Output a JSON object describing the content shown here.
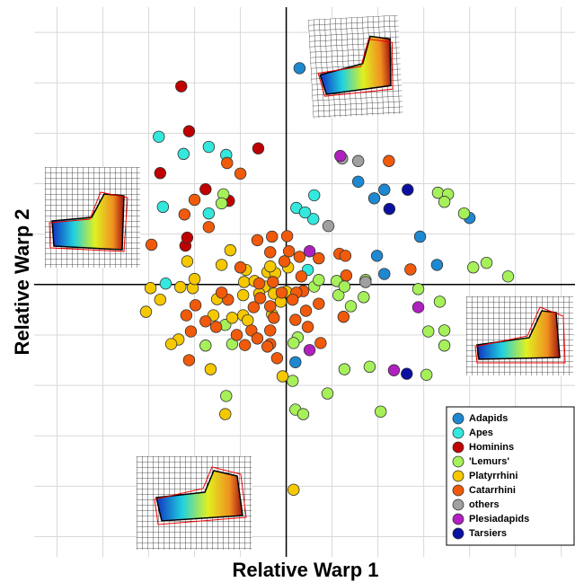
{
  "chart_data": {
    "type": "scatter",
    "x_label": "Relative Warp 1",
    "y_label": "Relative Warp 2",
    "xlim": [
      -5.5,
      6.3
    ],
    "ylim": [
      -5.4,
      5.5
    ],
    "xticks": [
      -5,
      -4,
      -3,
      -2,
      -1,
      0,
      1,
      2,
      3,
      4,
      5,
      6
    ],
    "yticks": [
      -5,
      -4,
      -3,
      -2,
      -1,
      0,
      1,
      2,
      3,
      4,
      5
    ],
    "grid": true,
    "legend": "lower right",
    "series": [
      {
        "name": "Adapids",
        "color": "#1e88d0",
        "x": [
          0.29,
          1.57,
          1.92,
          2.14,
          2.92,
          1.98,
          2.14,
          3.29,
          4.0,
          0.2
        ],
        "values": [
          4.29,
          2.04,
          1.71,
          1.88,
          0.95,
          0.57,
          0.21,
          0.39,
          1.32,
          -1.54
        ]
      },
      {
        "name": "Apes",
        "color": "#33e8dd",
        "x": [
          -2.78,
          -2.24,
          -1.69,
          -1.31,
          -2.69,
          -1.69,
          0.22,
          0.59,
          0.41,
          -2.63,
          0.47,
          0.61
        ],
        "values": [
          2.93,
          2.59,
          2.73,
          2.57,
          1.54,
          1.41,
          1.52,
          1.3,
          1.43,
          0.02,
          0.29,
          1.77
        ]
      },
      {
        "name": "Hominins",
        "color": "#c00000",
        "x": [
          -2.29,
          -2.12,
          -0.61,
          -2.75,
          -1.76,
          -1.25,
          -2.2,
          -2.16
        ],
        "values": [
          3.93,
          3.04,
          2.7,
          2.21,
          1.89,
          1.66,
          0.77,
          0.93
        ]
      },
      {
        "name": "'Lemurs'",
        "color": "#a6f05a",
        "x": [
          -1.37,
          -1.41,
          3.31,
          3.53,
          3.88,
          3.45,
          4.08,
          4.37,
          4.84,
          2.88,
          3.35,
          3.45,
          3.1,
          3.45,
          3.06,
          1.82,
          1.27,
          0.9,
          2.06,
          0.14,
          0.2,
          0.37,
          1.1,
          1.14,
          1.27,
          1.69,
          1.73,
          1.41,
          0.61,
          -1.33,
          -1.18,
          -1.76,
          -1.31,
          0.25,
          0.71,
          0.16
        ],
        "values": [
          1.79,
          1.61,
          1.82,
          1.79,
          1.41,
          1.64,
          0.34,
          0.43,
          0.16,
          -0.09,
          -0.34,
          -0.91,
          -0.93,
          -1.21,
          -1.79,
          -1.63,
          -1.68,
          -2.16,
          -2.52,
          -1.91,
          -2.48,
          -2.57,
          0.07,
          -0.21,
          -0.04,
          -0.25,
          0.09,
          -0.43,
          -0.04,
          -0.8,
          -1.18,
          -1.21,
          -2.21,
          -1.05,
          0.09,
          -1.16
        ]
      },
      {
        "name": "Platyrrhini",
        "color": "#f5c800",
        "x": [
          -1.41,
          -1.22,
          -2.16,
          -2.96,
          -3.06,
          -2.75,
          -2.31,
          -2.04,
          -2.0,
          -1.51,
          -0.92,
          -0.94,
          -0.41,
          -0.47,
          -0.24,
          -0.59,
          -0.27,
          -0.94,
          -0.12,
          -0.84,
          -0.31,
          -1.59,
          -1.18,
          -2.35,
          -2.51,
          -1.65,
          -0.08,
          -1.33,
          0.16,
          0.04,
          -0.35,
          -0.88,
          -0.69,
          0.0
        ],
        "values": [
          0.39,
          0.68,
          0.46,
          -0.07,
          -0.54,
          -0.3,
          -0.05,
          -0.07,
          0.11,
          -0.29,
          0.05,
          -0.21,
          0.25,
          -0.04,
          0.23,
          -0.18,
          -0.18,
          -0.61,
          -0.34,
          -0.71,
          -0.59,
          -0.61,
          -0.66,
          -1.09,
          -1.18,
          -1.68,
          -1.82,
          -2.57,
          -4.07,
          0.34,
          0.36,
          0.29,
          0.07,
          -0.14
        ]
      },
      {
        "name": "Catarrhini",
        "color": "#f05a0a",
        "x": [
          -1.29,
          -1.0,
          2.24,
          -2.22,
          -1.69,
          -2.94,
          -2.0,
          -1.0,
          -0.63,
          -0.31,
          0.02,
          -0.35,
          0.06,
          0.29,
          -0.04,
          0.71,
          1.16,
          1.31,
          1.29,
          0.33,
          0.37,
          -0.1,
          0.22,
          -0.57,
          -0.71,
          -0.35,
          0.14,
          0.43,
          -0.27,
          -0.76,
          -0.63,
          -0.35,
          -0.9,
          -0.2,
          0.75,
          0.47,
          0.2,
          1.25,
          2.71,
          -1.98,
          -1.76,
          -2.18,
          -2.08,
          -1.53,
          -2.12,
          -1.27,
          -0.41,
          -0.59,
          0.71,
          -0.29,
          -1.41,
          -1.08,
          -0.35
        ],
        "values": [
          2.41,
          2.2,
          2.45,
          1.39,
          1.14,
          0.79,
          1.68,
          0.34,
          0.88,
          0.95,
          0.96,
          0.64,
          0.66,
          0.55,
          0.46,
          0.52,
          0.61,
          0.18,
          0.57,
          0.16,
          -0.13,
          -0.16,
          -0.16,
          -0.27,
          -0.45,
          -0.43,
          -0.3,
          -0.52,
          -0.66,
          -0.91,
          -1.07,
          -1.18,
          -1.2,
          -1.46,
          -1.16,
          -0.84,
          -0.7,
          -0.64,
          0.3,
          -0.41,
          -0.73,
          -0.61,
          -0.93,
          -0.84,
          -1.5,
          -0.3,
          -1.23,
          0.02,
          -0.38,
          0.05,
          -0.16,
          -1.0,
          -0.91
        ]
      },
      {
        "name": "others",
        "color": "#a0a0a0",
        "x": [
          1.22,
          1.57,
          0.92,
          1.73
        ],
        "values": [
          2.5,
          2.45,
          1.16,
          0.05
        ]
      },
      {
        "name": "Plesiadapids",
        "color": "#b020c0",
        "x": [
          1.18,
          0.51,
          0.51,
          2.88,
          2.35
        ],
        "values": [
          2.55,
          0.66,
          -1.3,
          -0.45,
          -1.7
        ]
      },
      {
        "name": "Tarsiers",
        "color": "#0a10a0",
        "x": [
          2.65,
          2.25,
          2.63
        ],
        "values": [
          1.88,
          1.5,
          -1.77
        ]
      }
    ]
  }
}
